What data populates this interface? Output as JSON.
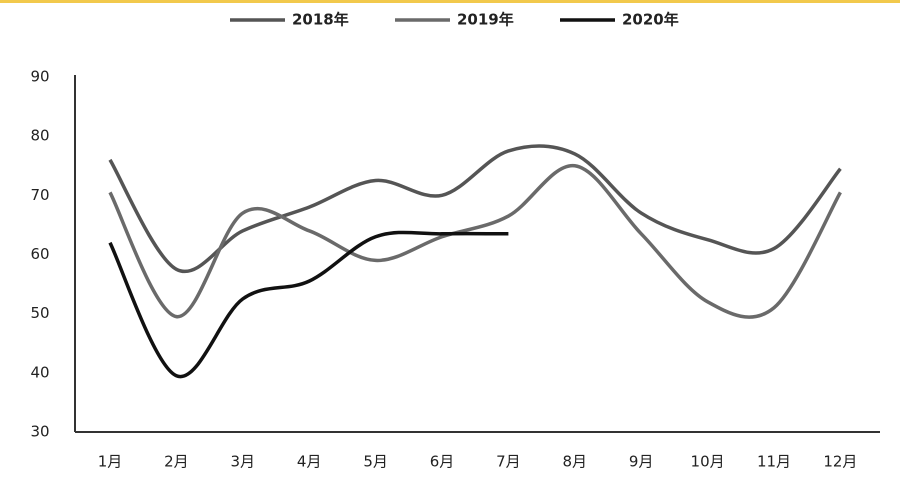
{
  "chart_data": {
    "type": "line",
    "categories": [
      "1月",
      "2月",
      "3月",
      "4月",
      "5月",
      "6月",
      "7月",
      "8月",
      "9月",
      "10月",
      "11月",
      "12月"
    ],
    "series": [
      {
        "name": "2018年",
        "color": "#555555",
        "values": [
          76,
          57.5,
          64,
          68,
          72.5,
          70,
          77.5,
          77,
          67,
          62.5,
          61,
          74.5
        ]
      },
      {
        "name": "2019年",
        "color": "#6a6a6a",
        "values": [
          70.5,
          49.5,
          67,
          64,
          59,
          63,
          66.5,
          75,
          63.5,
          52,
          51,
          70.5
        ]
      },
      {
        "name": "2020年",
        "color": "#111111",
        "values": [
          62,
          39.5,
          52.5,
          55.5,
          63,
          63.5,
          63.5,
          null,
          null,
          null,
          null,
          null
        ]
      }
    ],
    "ylim": [
      30,
      90
    ],
    "yticks": [
      30,
      40,
      50,
      60,
      70,
      80,
      90
    ]
  }
}
